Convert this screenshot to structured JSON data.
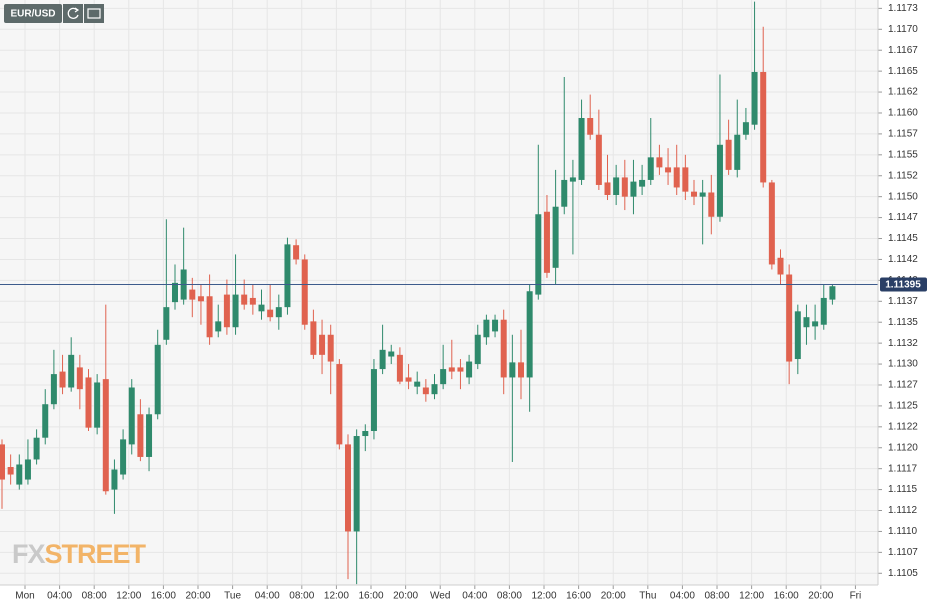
{
  "chart_data": {
    "type": "candlestick",
    "symbol": "EUR/USD",
    "watermark": {
      "left": "FX",
      "right": "STREET"
    },
    "up_color": "#2f8a6c",
    "down_color": "#e0624f",
    "last_price": 1.11395,
    "x": [
      0,
      1,
      2,
      3,
      4,
      5,
      6,
      7,
      8,
      9,
      10,
      11,
      12,
      13,
      14,
      15,
      16,
      17,
      18,
      19,
      20,
      21,
      22,
      23,
      24,
      25,
      26,
      27,
      28,
      29,
      30,
      31,
      32,
      33,
      34,
      35,
      36,
      37,
      38,
      39,
      40,
      41,
      42,
      43,
      44,
      45,
      46,
      47,
      48,
      49,
      50,
      51,
      52,
      53,
      54,
      55,
      56,
      57,
      58,
      59,
      60,
      61,
      62,
      63,
      64,
      65,
      66,
      67,
      68,
      69,
      70,
      71,
      72,
      73,
      74,
      75,
      76,
      77,
      78,
      79,
      80,
      81,
      82,
      83,
      84,
      85,
      86,
      87,
      88,
      89,
      90,
      91,
      92,
      93,
      94,
      95,
      96
    ],
    "open": [
      1.11204,
      1.11177,
      1.11156,
      1.11162,
      1.11186,
      1.11212,
      1.11252,
      1.11291,
      1.11272,
      1.11296,
      1.11284,
      1.11224,
      1.11282,
      1.1115,
      1.11168,
      1.11204,
      1.1124,
      1.11189,
      1.1124,
      1.11329,
      1.11374,
      1.11377,
      1.11389,
      1.11381,
      1.11381,
      1.11339,
      1.11383,
      1.11344,
      1.11383,
      1.11379,
      1.11363,
      1.11365,
      1.11356,
      1.11368,
      1.11442,
      1.11425,
      1.11351,
      1.11335,
      1.11335,
      1.113,
      1.11204,
      1.111,
      1.11214,
      1.1122,
      1.11294,
      1.11309,
      1.11311,
      1.11284,
      1.11273,
      1.11272,
      1.11264,
      1.11276,
      1.11296,
      1.11296,
      1.11284,
      1.113,
      1.11332,
      1.11339,
      1.11353,
      1.11284,
      1.11302,
      1.11284,
      1.11383,
      1.11482,
      1.11415,
      1.11488,
      1.11518,
      1.1152,
      1.11594,
      1.11574,
      1.11517,
      1.11502,
      1.11523,
      1.115,
      1.11512,
      1.1152,
      1.11547,
      1.11535,
      1.11535,
      1.11535,
      1.11506,
      1.115,
      1.11505,
      1.11476,
      1.11568,
      1.11532,
      1.11574,
      1.11586,
      1.11649,
      1.11517,
      1.11427,
      1.11407,
      1.11306,
      1.11344,
      1.11345,
      1.11347,
      1.11377
    ],
    "high": [
      1.1121,
      1.11192,
      1.11192,
      1.1121,
      1.11222,
      1.1127,
      1.11317,
      1.11311,
      1.11332,
      1.11311,
      1.11294,
      1.11288,
      1.11371,
      1.11186,
      1.11222,
      1.11282,
      1.11258,
      1.11248,
      1.11341,
      1.11473,
      1.11419,
      1.11463,
      1.11403,
      1.11395,
      1.11407,
      1.11371,
      1.11401,
      1.11431,
      1.11401,
      1.11395,
      1.11389,
      1.11395,
      1.11383,
      1.11451,
      1.11449,
      1.11431,
      1.11365,
      1.11353,
      1.11347,
      1.11306,
      1.11216,
      1.11222,
      1.11228,
      1.11306,
      1.11347,
      1.11323,
      1.1132,
      1.113,
      1.11291,
      1.11282,
      1.11288,
      1.11323,
      1.11329,
      1.11306,
      1.11311,
      1.11347,
      1.11359,
      1.11359,
      1.11365,
      1.11335,
      1.11341,
      1.11395,
      1.11562,
      1.11502,
      1.11532,
      1.11643,
      1.11544,
      1.11616,
      1.11622,
      1.11604,
      1.1155,
      1.11538,
      1.11544,
      1.11544,
      1.11538,
      1.11594,
      1.11562,
      1.11558,
      1.11562,
      1.1155,
      1.1152,
      1.1152,
      1.11526,
      1.11646,
      1.11592,
      1.11616,
      1.11606,
      1.11733,
      1.11703,
      1.1152,
      1.11437,
      1.11419,
      1.11371,
      1.11371,
      1.11371,
      1.11395,
      1.11395
    ],
    "low": [
      1.11127,
      1.11156,
      1.1115,
      1.11156,
      1.1118,
      1.11204,
      1.11246,
      1.11264,
      1.11267,
      1.11246,
      1.1122,
      1.11216,
      1.11144,
      1.11121,
      1.11162,
      1.11192,
      1.11184,
      1.11172,
      1.11234,
      1.11323,
      1.11365,
      1.11371,
      1.11356,
      1.11347,
      1.11323,
      1.11332,
      1.11335,
      1.11335,
      1.11365,
      1.11359,
      1.11353,
      1.11351,
      1.11341,
      1.11359,
      1.11419,
      1.11341,
      1.11306,
      1.11288,
      1.11264,
      1.11198,
      1.11043,
      1.11037,
      1.11196,
      1.1121,
      1.11288,
      1.113,
      1.11276,
      1.1127,
      1.11264,
      1.11255,
      1.11258,
      1.1127,
      1.11282,
      1.1127,
      1.11276,
      1.11294,
      1.11323,
      1.11332,
      1.11264,
      1.11183,
      1.11258,
      1.11243,
      1.11377,
      1.11403,
      1.11395,
      1.11479,
      1.11431,
      1.11514,
      1.11568,
      1.11508,
      1.11496,
      1.1149,
      1.11484,
      1.11479,
      1.11502,
      1.11514,
      1.11526,
      1.11514,
      1.11502,
      1.11496,
      1.1149,
      1.11443,
      1.11455,
      1.1147,
      1.11526,
      1.11523,
      1.11568,
      1.1158,
      1.11511,
      1.11413,
      1.11395,
      1.11276,
      1.11288,
      1.11323,
      1.11329,
      1.11341,
      1.11371
    ],
    "close": [
      1.11162,
      1.11168,
      1.1118,
      1.11186,
      1.11212,
      1.11252,
      1.11288,
      1.11272,
      1.11311,
      1.1127,
      1.11224,
      1.11278,
      1.11148,
      1.11174,
      1.1121,
      1.11272,
      1.11189,
      1.1124,
      1.11323,
      1.11368,
      1.11397,
      1.11413,
      1.11377,
      1.11375,
      1.11332,
      1.11351,
      1.11344,
      1.11383,
      1.11371,
      1.11371,
      1.11371,
      1.11356,
      1.11368,
      1.11443,
      1.11425,
      1.11347,
      1.11311,
      1.11311,
      1.11303,
      1.11204,
      1.111,
      1.11214,
      1.1122,
      1.11294,
      1.11317,
      1.11315,
      1.11279,
      1.11279,
      1.11279,
      1.11264,
      1.11276,
      1.11294,
      1.11291,
      1.11291,
      1.11303,
      1.11335,
      1.11353,
      1.11353,
      1.11284,
      1.11302,
      1.11284,
      1.11387,
      1.11479,
      1.11409,
      1.11488,
      1.1152,
      1.11523,
      1.11594,
      1.11574,
      1.11514,
      1.11502,
      1.11523,
      1.115,
      1.11518,
      1.1152,
      1.11547,
      1.11535,
      1.11529,
      1.11511,
      1.11506,
      1.115,
      1.11505,
      1.11476,
      1.11562,
      1.11532,
      1.11574,
      1.11589,
      1.11649,
      1.11517,
      1.11419,
      1.11407,
      1.11303,
      1.11363,
      1.11356,
      1.11351,
      1.11379,
      1.11393
    ],
    "xlim": [
      -0.23,
      101.27
    ],
    "xticks": [
      {
        "value": 2.66,
        "label": "Mon"
      },
      {
        "value": 6.66,
        "label": "04:00"
      },
      {
        "value": 10.66,
        "label": "08:00"
      },
      {
        "value": 14.66,
        "label": "12:00"
      },
      {
        "value": 18.66,
        "label": "16:00"
      },
      {
        "value": 22.66,
        "label": "20:00"
      },
      {
        "value": 26.66,
        "label": "Tue"
      },
      {
        "value": 30.66,
        "label": "04:00"
      },
      {
        "value": 34.66,
        "label": "08:00"
      },
      {
        "value": 38.66,
        "label": "12:00"
      },
      {
        "value": 42.66,
        "label": "16:00"
      },
      {
        "value": 46.66,
        "label": "20:00"
      },
      {
        "value": 50.66,
        "label": "Wed"
      },
      {
        "value": 54.66,
        "label": "04:00"
      },
      {
        "value": 58.66,
        "label": "08:00"
      },
      {
        "value": 62.66,
        "label": "12:00"
      },
      {
        "value": 66.66,
        "label": "16:00"
      },
      {
        "value": 70.66,
        "label": "20:00"
      },
      {
        "value": 74.66,
        "label": "Thu"
      },
      {
        "value": 78.66,
        "label": "04:00"
      },
      {
        "value": 82.66,
        "label": "08:00"
      },
      {
        "value": 86.66,
        "label": "12:00"
      },
      {
        "value": 90.66,
        "label": "16:00"
      },
      {
        "value": 94.66,
        "label": "20:00"
      },
      {
        "value": 98.66,
        "label": "Fri"
      }
    ],
    "ylim": [
      1.11036,
      1.11735
    ],
    "yticks": [
      {
        "value": 1.11725,
        "label": "1.1173"
      },
      {
        "value": 1.117,
        "label": "1.1170"
      },
      {
        "value": 1.11675,
        "label": "1.1167"
      },
      {
        "value": 1.1165,
        "label": "1.1165"
      },
      {
        "value": 1.11625,
        "label": "1.1162"
      },
      {
        "value": 1.116,
        "label": "1.1160"
      },
      {
        "value": 1.11575,
        "label": "1.1157"
      },
      {
        "value": 1.1155,
        "label": "1.1155"
      },
      {
        "value": 1.11525,
        "label": "1.1152"
      },
      {
        "value": 1.115,
        "label": "1.1150"
      },
      {
        "value": 1.11475,
        "label": "1.1147"
      },
      {
        "value": 1.1145,
        "label": "1.1145"
      },
      {
        "value": 1.11425,
        "label": "1.1142"
      },
      {
        "value": 1.114,
        "label": "1.1140"
      },
      {
        "value": 1.11375,
        "label": "1.1137"
      },
      {
        "value": 1.1135,
        "label": "1.1135"
      },
      {
        "value": 1.11325,
        "label": "1.1132"
      },
      {
        "value": 1.113,
        "label": "1.1130"
      },
      {
        "value": 1.11275,
        "label": "1.1127"
      },
      {
        "value": 1.1125,
        "label": "1.1125"
      },
      {
        "value": 1.11225,
        "label": "1.1122"
      },
      {
        "value": 1.112,
        "label": "1.1120"
      },
      {
        "value": 1.11175,
        "label": "1.1117"
      },
      {
        "value": 1.1115,
        "label": "1.1115"
      },
      {
        "value": 1.11125,
        "label": "1.1112"
      },
      {
        "value": 1.111,
        "label": "1.1110"
      },
      {
        "value": 1.11075,
        "label": "1.1107"
      },
      {
        "value": 1.1105,
        "label": "1.1105"
      }
    ],
    "grid": true
  }
}
